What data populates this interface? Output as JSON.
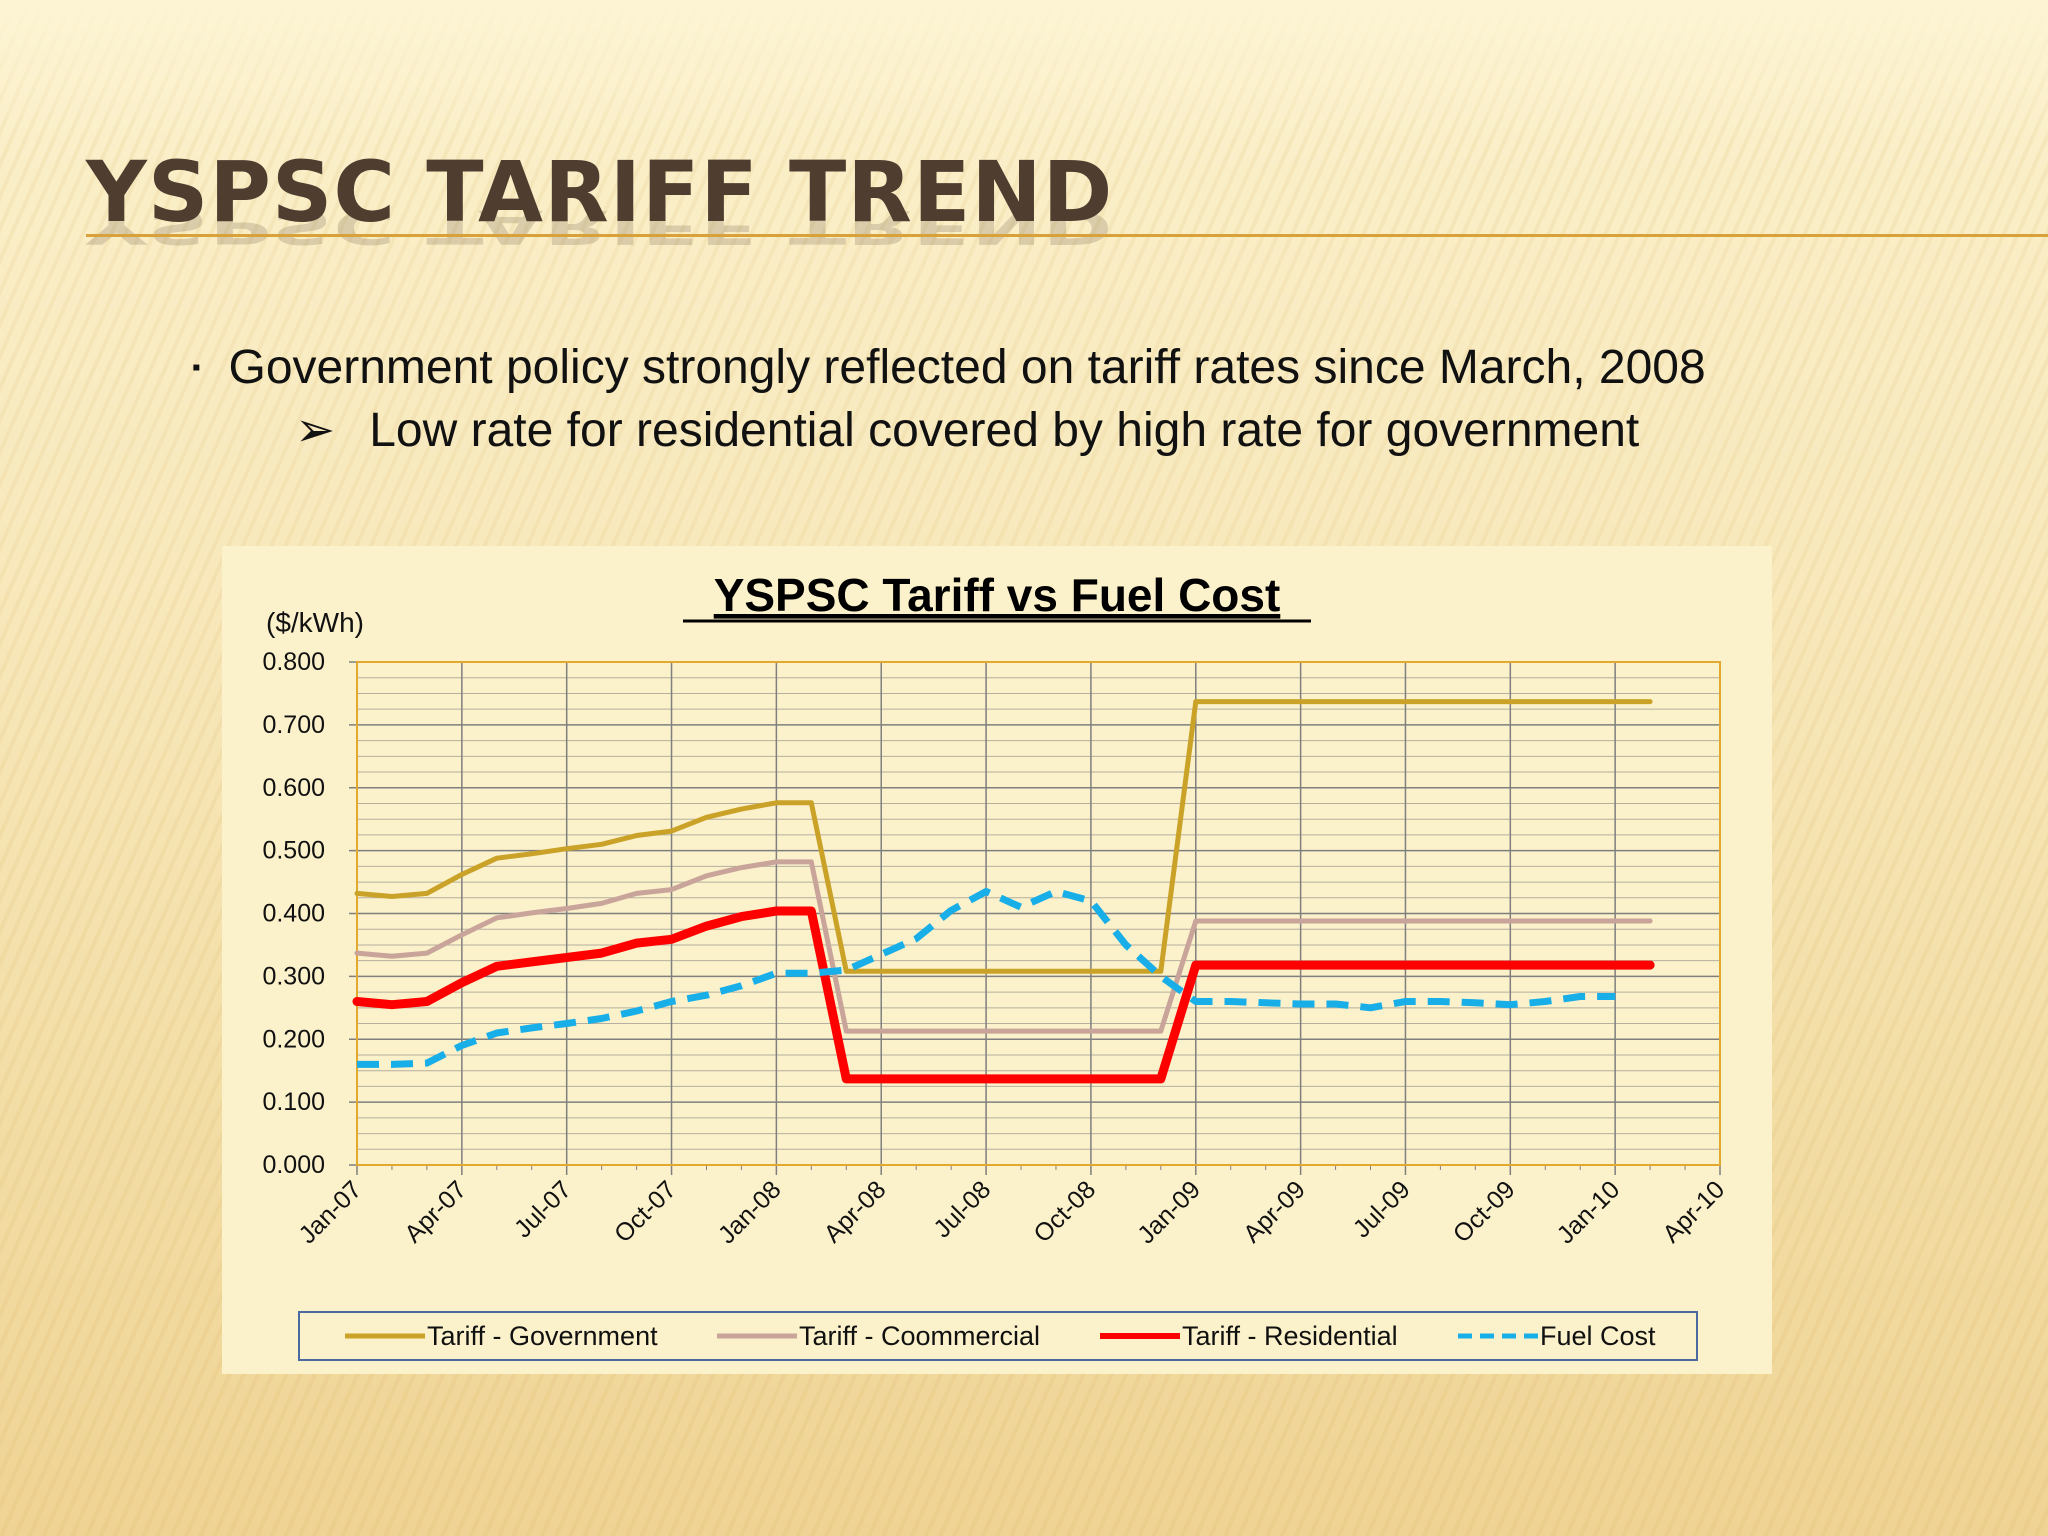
{
  "slide": {
    "title": "YSPSC Tariff Trend",
    "bullet": "Government policy strongly reflected on tariff rates since March, 2008",
    "bullet_marker": "▪",
    "sub_bullet": "Low rate for residential covered by high rate for government",
    "sub_bullet_marker": "➢"
  },
  "chart_data": {
    "type": "line",
    "title": "YSPSC Tariff vs Fuel Cost",
    "ylabel": "($/kWh)",
    "xlabel": "",
    "ylim": [
      0,
      0.8
    ],
    "yticks": [
      "0.000",
      "0.100",
      "0.200",
      "0.300",
      "0.400",
      "0.500",
      "0.600",
      "0.700",
      "0.800"
    ],
    "xticks": [
      "Jan-07",
      "Apr-07",
      "Jul-07",
      "Oct-07",
      "Jan-08",
      "Apr-08",
      "Jul-08",
      "Oct-08",
      "Jan-09",
      "Apr-09",
      "Jul-09",
      "Oct-09",
      "Jan-10",
      "Apr-10"
    ],
    "grid": true,
    "legend_position": "bottom",
    "x": [
      "Jan-07",
      "Feb-07",
      "Mar-07",
      "Apr-07",
      "May-07",
      "Jun-07",
      "Jul-07",
      "Aug-07",
      "Sep-07",
      "Oct-07",
      "Nov-07",
      "Dec-07",
      "Jan-08",
      "Feb-08",
      "Mar-08",
      "Apr-08",
      "May-08",
      "Jun-08",
      "Jul-08",
      "Aug-08",
      "Sep-08",
      "Oct-08",
      "Nov-08",
      "Dec-08",
      "Jan-09",
      "Feb-09",
      "Mar-09",
      "Apr-09",
      "May-09",
      "Jun-09",
      "Jul-09",
      "Aug-09",
      "Sep-09",
      "Oct-09",
      "Nov-09",
      "Dec-09",
      "Jan-10",
      "Feb-10"
    ],
    "series": [
      {
        "name": "Tariff - Government",
        "color": "#c9a227",
        "style": "solid",
        "values": [
          0.432,
          0.427,
          0.432,
          0.462,
          0.488,
          0.495,
          0.503,
          0.51,
          0.524,
          0.531,
          0.553,
          0.566,
          0.576,
          0.576,
          0.308,
          0.308,
          0.308,
          0.308,
          0.308,
          0.308,
          0.308,
          0.308,
          0.308,
          0.308,
          0.737,
          0.737,
          0.737,
          0.737,
          0.737,
          0.737,
          0.737,
          0.737,
          0.737,
          0.737,
          0.737,
          0.737,
          0.737,
          0.737
        ]
      },
      {
        "name": "Tariff - Coommercial",
        "color": "#c9a49a",
        "style": "solid",
        "values": [
          0.337,
          0.332,
          0.337,
          0.366,
          0.393,
          0.401,
          0.408,
          0.416,
          0.432,
          0.438,
          0.46,
          0.473,
          0.482,
          0.482,
          0.213,
          0.213,
          0.213,
          0.213,
          0.213,
          0.213,
          0.213,
          0.213,
          0.213,
          0.213,
          0.388,
          0.388,
          0.388,
          0.388,
          0.388,
          0.388,
          0.388,
          0.388,
          0.388,
          0.388,
          0.388,
          0.388,
          0.388,
          0.388
        ]
      },
      {
        "name": "Tariff - Residential",
        "color": "#ff0000",
        "style": "solid",
        "values": [
          0.26,
          0.255,
          0.26,
          0.29,
          0.316,
          0.323,
          0.33,
          0.337,
          0.353,
          0.359,
          0.38,
          0.395,
          0.404,
          0.404,
          0.137,
          0.137,
          0.137,
          0.137,
          0.137,
          0.137,
          0.137,
          0.137,
          0.137,
          0.137,
          0.318,
          0.318,
          0.318,
          0.318,
          0.318,
          0.318,
          0.318,
          0.318,
          0.318,
          0.318,
          0.318,
          0.318,
          0.318,
          0.318
        ]
      },
      {
        "name": "Fuel Cost",
        "color": "#18aee8",
        "style": "dashed",
        "values": [
          0.16,
          0.16,
          0.162,
          0.19,
          0.21,
          0.218,
          0.225,
          0.233,
          0.245,
          0.26,
          0.27,
          0.285,
          0.305,
          0.305,
          0.31,
          0.335,
          0.36,
          0.405,
          0.435,
          0.41,
          0.435,
          0.42,
          0.35,
          0.3,
          0.26,
          0.26,
          0.258,
          0.256,
          0.256,
          0.25,
          0.26,
          0.26,
          0.258,
          0.255,
          0.26,
          0.268,
          0.268,
          null
        ]
      }
    ]
  }
}
